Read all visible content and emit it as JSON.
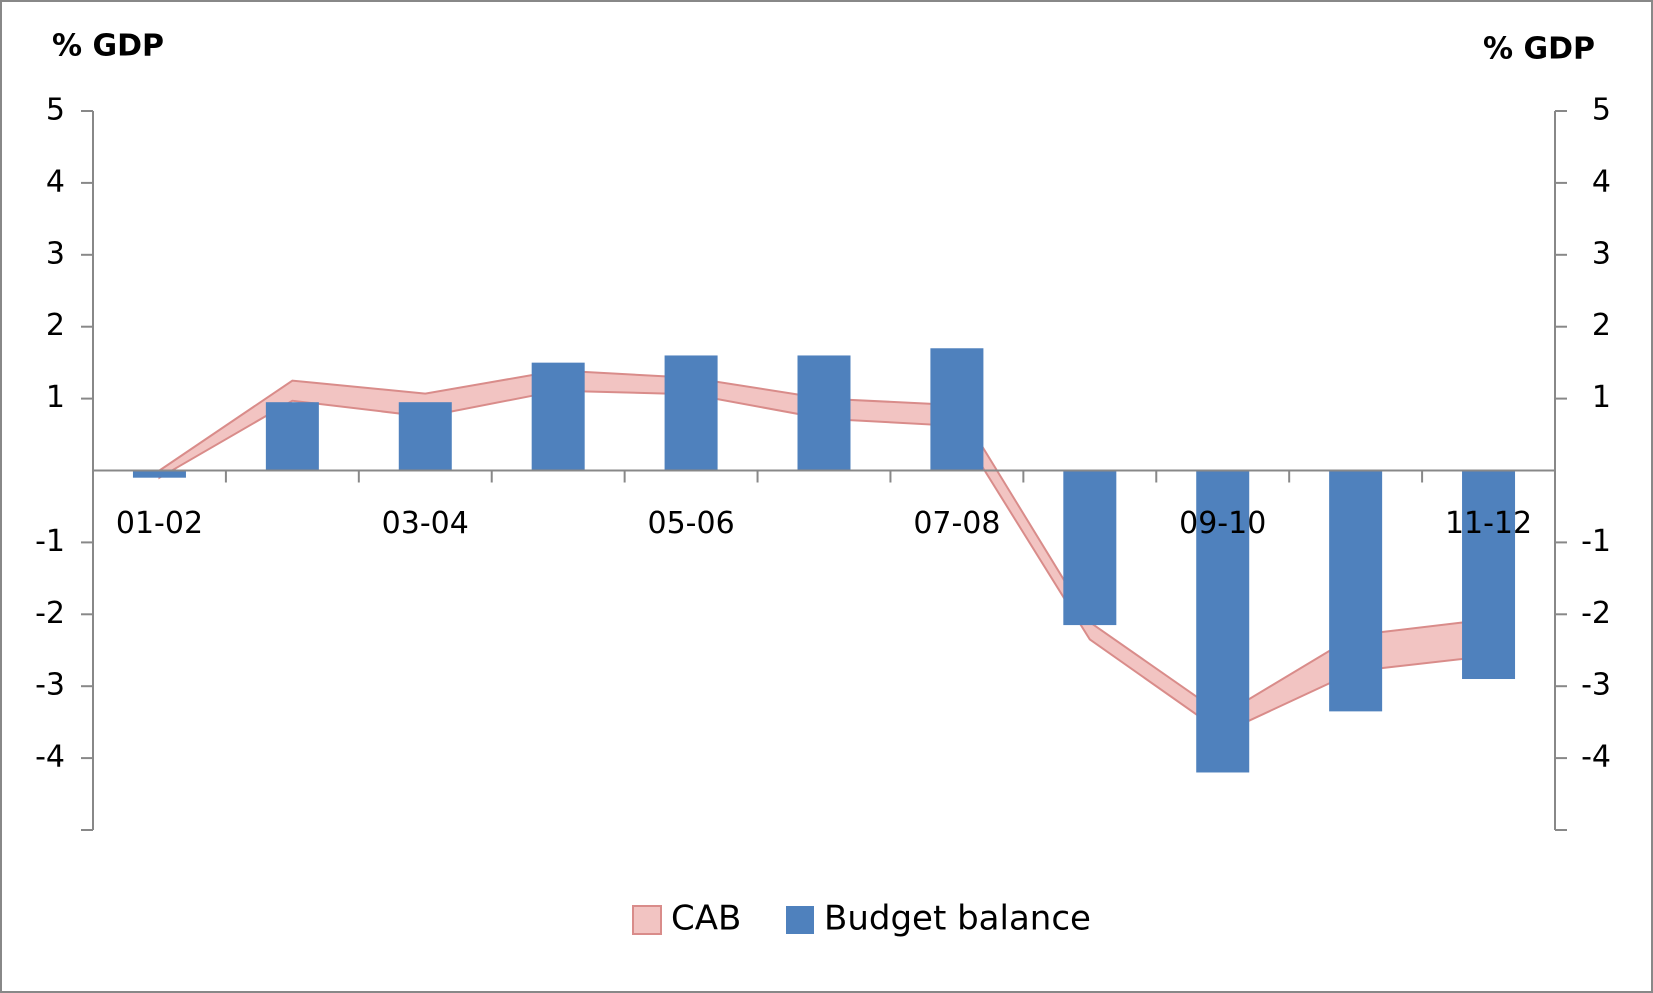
{
  "chart_data": {
    "type": "bar-band",
    "y_label": "% GDP",
    "y2_label": "% GDP",
    "categories": [
      "01-02",
      null,
      "03-04",
      null,
      "05-06",
      null,
      "07-08",
      null,
      "09-10",
      null,
      "11-12"
    ],
    "series": [
      {
        "name": "CAB",
        "color": "#f2c4c2",
        "edge_color": "#d98c8a",
        "values": [
          0,
          1.25,
          1.07,
          1.39,
          1.29,
          1.0,
          0.91,
          -2.11,
          -3.4,
          -2.29,
          -2.07
        ],
        "lower": [
          -0.1,
          0.97,
          0.75,
          1.11,
          1.06,
          0.72,
          0.62,
          -2.35,
          -3.65,
          -2.79,
          -2.58
        ]
      },
      {
        "name": "Budget balance",
        "color": "#4f81bd",
        "values": [
          -0.1,
          0.95,
          0.95,
          1.5,
          1.6,
          1.6,
          1.7,
          -2.15,
          -4.2,
          -3.35,
          -2.9
        ]
      }
    ],
    "ylim": [
      -5,
      5
    ],
    "yticks": [
      -4,
      -3,
      -2,
      -1,
      1,
      2,
      3,
      4,
      5
    ],
    "y2lim": [
      -5,
      5
    ],
    "y2ticks": [
      -4,
      -3,
      -2,
      -1,
      1,
      2,
      3,
      4,
      5
    ],
    "legend": "bottom"
  }
}
